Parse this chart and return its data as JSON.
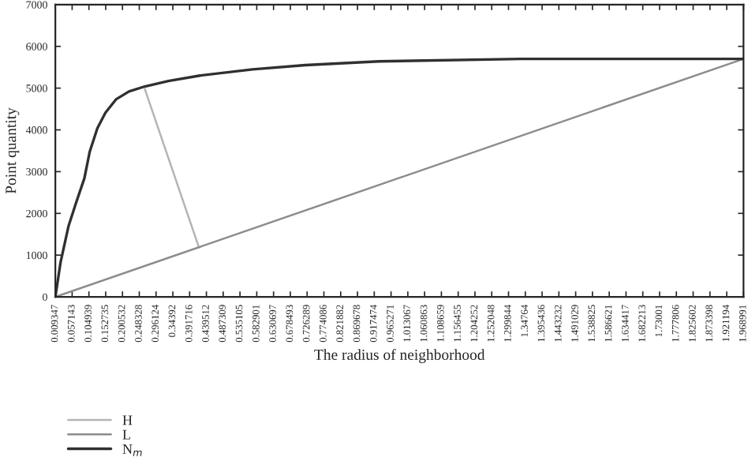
{
  "chart_data": {
    "type": "line",
    "xlabel": "The radius of neighborhood",
    "ylabel": "Point quantity",
    "xlim": [
      0.009347,
      1.968991
    ],
    "ylim": [
      0,
      7000
    ],
    "xticks": [
      0.009347,
      0.057143,
      0.104939,
      0.152735,
      0.200532,
      0.248328,
      0.296124,
      0.34392,
      0.391716,
      0.439512,
      0.487309,
      0.535105,
      0.582901,
      0.630697,
      0.678493,
      0.726289,
      0.774086,
      0.821882,
      0.869678,
      0.917474,
      0.965271,
      1.013067,
      1.060863,
      1.108659,
      1.156455,
      1.204252,
      1.252048,
      1.299844,
      1.34764,
      1.395436,
      1.443232,
      1.491029,
      1.538825,
      1.586621,
      1.634417,
      1.682213,
      1.73001,
      1.777806,
      1.825602,
      1.873398,
      1.921194,
      1.968991
    ],
    "yticks": [
      0,
      1000,
      2000,
      3000,
      4000,
      5000,
      6000,
      7000
    ],
    "grid": false,
    "legend": "bottom left",
    "series": [
      {
        "name": "H",
        "color": "#b4b4b4",
        "x": [
          0.264,
          0.418
        ],
        "values": [
          4980,
          1190
        ]
      },
      {
        "name": "L",
        "color": "#8c8c8c",
        "x": [
          0.009347,
          1.968991
        ],
        "values": [
          0,
          5700
        ]
      },
      {
        "name": "N$_{m}$",
        "color": "#303030",
        "x": [
          0.009347,
          0.024,
          0.047,
          0.069,
          0.092,
          0.107,
          0.129,
          0.152,
          0.182,
          0.219,
          0.264,
          0.331,
          0.421,
          0.571,
          0.721,
          0.93,
          1.335,
          1.968991
        ],
        "values": [
          0,
          820,
          1700,
          2270,
          2840,
          3470,
          4040,
          4410,
          4730,
          4920,
          5040,
          5170,
          5300,
          5450,
          5550,
          5640,
          5700,
          5700
        ]
      }
    ]
  }
}
